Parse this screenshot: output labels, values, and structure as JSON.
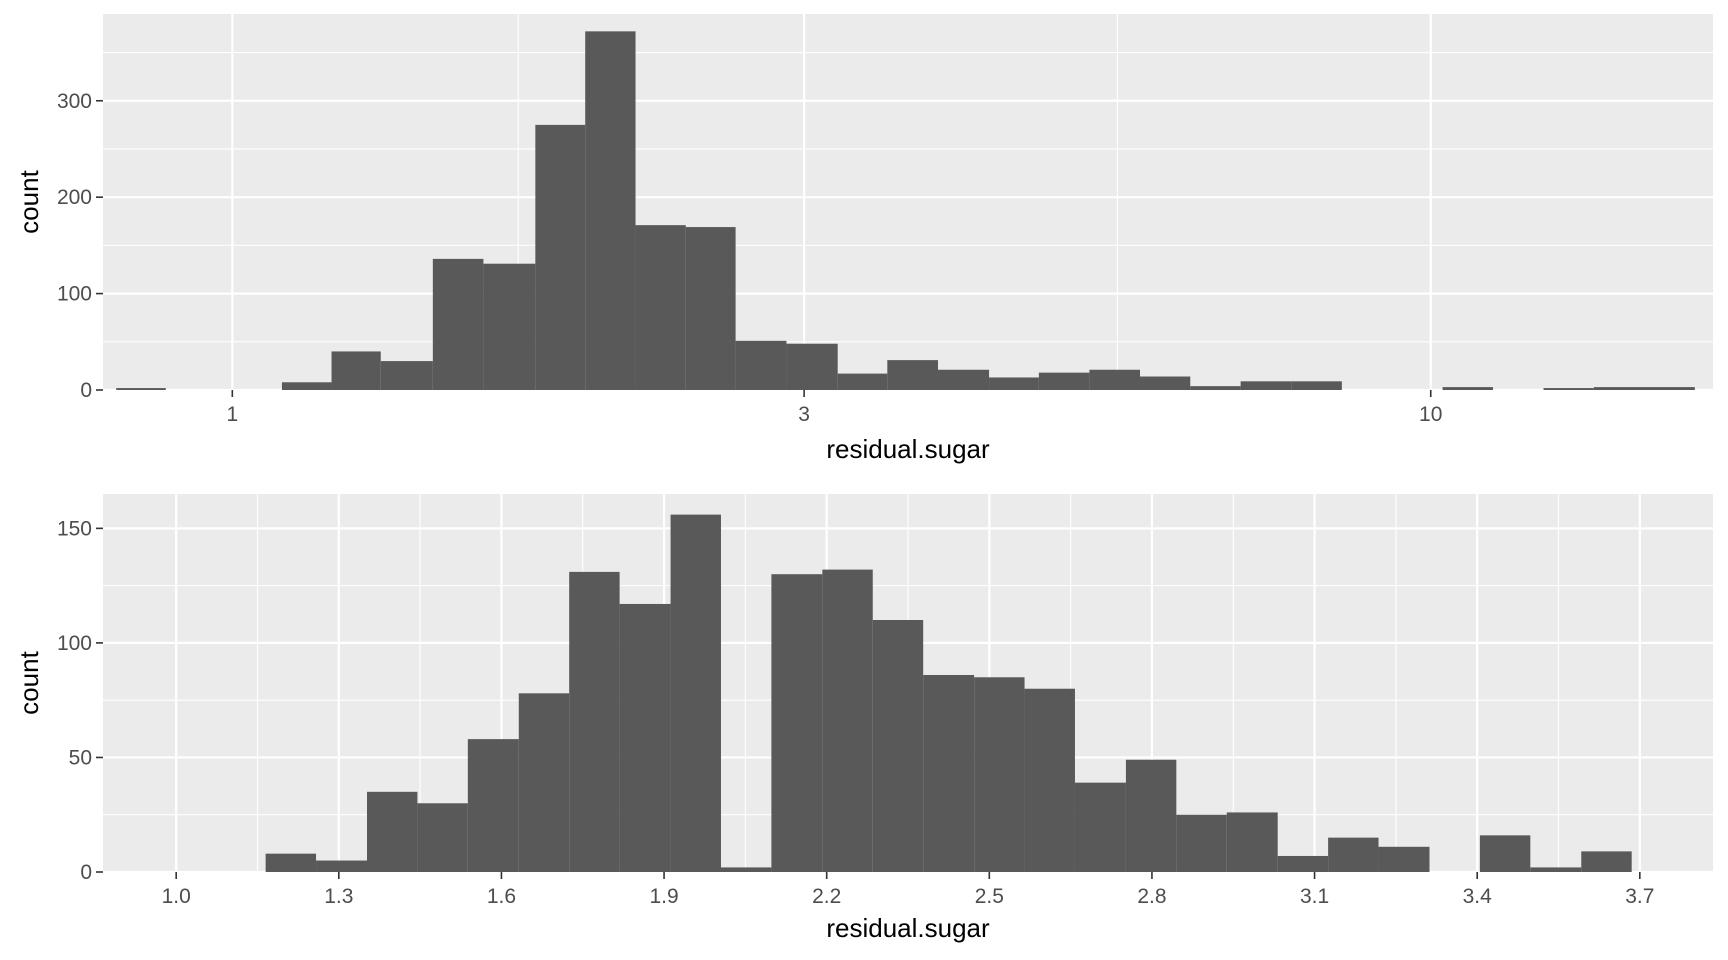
{
  "colors": {
    "panel_bg": "#ebebeb",
    "grid_major": "#ffffff",
    "bar_fill": "#595959",
    "tick_color": "#333333"
  },
  "chart_data": [
    {
      "type": "bar",
      "xlabel": "residual.sugar",
      "ylabel": "count",
      "x_scale": "log10",
      "xlim": [
        0.78,
        17.2
      ],
      "ylim": [
        0,
        390
      ],
      "x_ticks": [
        1,
        3,
        10
      ],
      "y_ticks": [
        0,
        100,
        200,
        300
      ],
      "grid": true,
      "bins": [
        {
          "x0": 0.8,
          "x1": 0.88,
          "count": 2
        },
        {
          "x0": 1.1,
          "x1": 1.21,
          "count": 8
        },
        {
          "x0": 1.21,
          "x1": 1.33,
          "count": 40
        },
        {
          "x0": 1.33,
          "x1": 1.47,
          "count": 30
        },
        {
          "x0": 1.47,
          "x1": 1.62,
          "count": 136
        },
        {
          "x0": 1.62,
          "x1": 1.79,
          "count": 131
        },
        {
          "x0": 1.79,
          "x1": 1.97,
          "count": 275
        },
        {
          "x0": 1.97,
          "x1": 2.17,
          "count": 372
        },
        {
          "x0": 2.17,
          "x1": 2.39,
          "count": 171
        },
        {
          "x0": 2.39,
          "x1": 2.63,
          "count": 169
        },
        {
          "x0": 2.63,
          "x1": 2.9,
          "count": 51
        },
        {
          "x0": 2.9,
          "x1": 3.2,
          "count": 48
        },
        {
          "x0": 3.2,
          "x1": 3.52,
          "count": 17
        },
        {
          "x0": 3.52,
          "x1": 3.88,
          "count": 31
        },
        {
          "x0": 3.88,
          "x1": 4.28,
          "count": 21
        },
        {
          "x0": 4.28,
          "x1": 4.71,
          "count": 13
        },
        {
          "x0": 4.71,
          "x1": 5.19,
          "count": 18
        },
        {
          "x0": 5.19,
          "x1": 5.72,
          "count": 21
        },
        {
          "x0": 5.72,
          "x1": 6.3,
          "count": 14
        },
        {
          "x0": 6.3,
          "x1": 6.94,
          "count": 4
        },
        {
          "x0": 6.94,
          "x1": 7.65,
          "count": 9
        },
        {
          "x0": 7.65,
          "x1": 8.43,
          "count": 9
        },
        {
          "x0": 10.23,
          "x1": 11.27,
          "count": 3
        },
        {
          "x0": 12.42,
          "x1": 13.68,
          "count": 2
        },
        {
          "x0": 13.68,
          "x1": 15.08,
          "count": 3
        },
        {
          "x0": 15.08,
          "x1": 16.61,
          "count": 3
        }
      ]
    },
    {
      "type": "bar",
      "xlabel": "residual.sugar",
      "ylabel": "count",
      "x_scale": "linear",
      "xlim": [
        0.865,
        3.835
      ],
      "ylim": [
        0,
        165
      ],
      "x_ticks": [
        "1.0",
        "1.3",
        "1.6",
        "1.9",
        "2.2",
        "2.5",
        "2.8",
        "3.1",
        "3.4",
        "3.7"
      ],
      "y_ticks": [
        0,
        50,
        100,
        150
      ],
      "grid": true,
      "bins": [
        {
          "x0": 1.165,
          "x1": 1.258,
          "count": 8
        },
        {
          "x0": 1.258,
          "x1": 1.352,
          "count": 5
        },
        {
          "x0": 1.352,
          "x1": 1.445,
          "count": 35
        },
        {
          "x0": 1.445,
          "x1": 1.538,
          "count": 30
        },
        {
          "x0": 1.538,
          "x1": 1.632,
          "count": 58
        },
        {
          "x0": 1.632,
          "x1": 1.725,
          "count": 78
        },
        {
          "x0": 1.725,
          "x1": 1.818,
          "count": 131
        },
        {
          "x0": 1.818,
          "x1": 1.912,
          "count": 117
        },
        {
          "x0": 1.912,
          "x1": 2.005,
          "count": 156
        },
        {
          "x0": 2.005,
          "x1": 2.098,
          "count": 2
        },
        {
          "x0": 2.098,
          "x1": 2.192,
          "count": 130
        },
        {
          "x0": 2.192,
          "x1": 2.285,
          "count": 132
        },
        {
          "x0": 2.285,
          "x1": 2.378,
          "count": 110
        },
        {
          "x0": 2.378,
          "x1": 2.472,
          "count": 86
        },
        {
          "x0": 2.472,
          "x1": 2.565,
          "count": 85
        },
        {
          "x0": 2.565,
          "x1": 2.658,
          "count": 80
        },
        {
          "x0": 2.658,
          "x1": 2.752,
          "count": 39
        },
        {
          "x0": 2.752,
          "x1": 2.845,
          "count": 49
        },
        {
          "x0": 2.845,
          "x1": 2.938,
          "count": 25
        },
        {
          "x0": 2.938,
          "x1": 3.032,
          "count": 26
        },
        {
          "x0": 3.032,
          "x1": 3.125,
          "count": 7
        },
        {
          "x0": 3.125,
          "x1": 3.218,
          "count": 15
        },
        {
          "x0": 3.218,
          "x1": 3.312,
          "count": 11
        },
        {
          "x0": 3.405,
          "x1": 3.498,
          "count": 16
        },
        {
          "x0": 3.498,
          "x1": 3.592,
          "count": 2
        },
        {
          "x0": 3.592,
          "x1": 3.685,
          "count": 9
        }
      ]
    }
  ]
}
